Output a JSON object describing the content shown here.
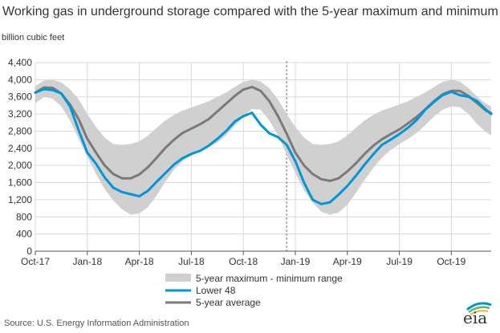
{
  "chart_data": {
    "type": "area",
    "title": "Working gas in underground storage compared with the 5-year maximum and minimum",
    "ylabel": "billion cubic feet",
    "xlabel": "",
    "ylim": [
      0,
      4400
    ],
    "yticks": [
      0,
      400,
      800,
      1200,
      1600,
      2000,
      2400,
      2800,
      3200,
      3600,
      4000,
      4400
    ],
    "ytick_labels": [
      "0",
      "400",
      "800",
      "1,200",
      "1,600",
      "2,000",
      "2,400",
      "2,800",
      "3,200",
      "3,600",
      "4,000",
      "4,400"
    ],
    "xtick_labels": [
      "Oct-17",
      "Jan-18",
      "Apr-18",
      "Jul-18",
      "Oct-18",
      "Jan-19",
      "Apr-19",
      "Jul-19",
      "Oct-19"
    ],
    "xtick_months": [
      0,
      3,
      6,
      9,
      12,
      15,
      18,
      21,
      24
    ],
    "x_unit": "months since Oct-17",
    "xlim": [
      0,
      26.3
    ],
    "grid": true,
    "divider_month": 14.5,
    "legend": [
      "5-year maximum - minimum range",
      "Lower 48",
      "5-year average"
    ],
    "series": [
      {
        "name": "5-year maximum - minimum range",
        "kind": "band",
        "color": "#d0d0d0",
        "x": [
          0,
          0.5,
          1,
          1.5,
          2,
          2.5,
          3,
          3.5,
          4,
          4.5,
          5,
          5.5,
          6,
          6.5,
          7,
          7.5,
          8,
          8.5,
          9,
          9.5,
          10,
          10.5,
          11,
          11.5,
          12,
          12.5,
          13,
          13.5,
          14,
          14.5,
          15,
          15.5,
          16,
          16.5,
          17,
          17.5,
          18,
          18.5,
          19,
          19.5,
          20,
          20.5,
          21,
          21.5,
          22,
          22.5,
          23,
          23.5,
          24,
          24.5,
          25,
          25.5,
          26,
          26.3
        ],
        "upper": [
          3850,
          3980,
          4000,
          3940,
          3780,
          3540,
          3200,
          2900,
          2650,
          2500,
          2480,
          2500,
          2560,
          2700,
          2880,
          3050,
          3180,
          3280,
          3350,
          3420,
          3500,
          3600,
          3700,
          3830,
          3950,
          4000,
          3960,
          3800,
          3540,
          3200,
          2900,
          2650,
          2500,
          2480,
          2500,
          2560,
          2700,
          2880,
          3050,
          3180,
          3280,
          3350,
          3420,
          3500,
          3600,
          3700,
          3830,
          3950,
          4000,
          3960,
          3800,
          3600,
          3440,
          3380
        ],
        "lower": [
          3450,
          3600,
          3560,
          3380,
          3050,
          2620,
          2200,
          1800,
          1450,
          1180,
          980,
          850,
          880,
          1030,
          1300,
          1620,
          1900,
          2100,
          2230,
          2330,
          2430,
          2530,
          2700,
          2920,
          3150,
          3320,
          3300,
          3050,
          2700,
          2250,
          1820,
          1420,
          1130,
          920,
          850,
          900,
          1080,
          1360,
          1660,
          1940,
          2180,
          2360,
          2500,
          2620,
          2760,
          2940,
          3140,
          3300,
          3380,
          3360,
          3200,
          2960,
          2780,
          2700
        ]
      },
      {
        "name": "Lower 48",
        "kind": "line",
        "color": "#0096d7",
        "x": [
          0,
          0.5,
          1,
          1.5,
          2,
          2.5,
          3,
          3.5,
          4,
          4.5,
          5,
          5.5,
          6,
          6.5,
          7,
          7.5,
          8,
          8.5,
          9,
          9.5,
          10,
          10.5,
          11,
          11.5,
          12,
          12.5,
          13,
          13.5,
          14,
          14.5,
          15,
          15.5,
          16,
          16.5,
          17,
          17.5,
          18,
          18.5,
          19,
          19.5,
          20,
          20.5,
          21,
          21.5,
          22,
          22.5,
          23,
          23.5,
          24,
          24.5,
          25,
          25.5,
          26,
          26.3
        ],
        "values": [
          3700,
          3780,
          3760,
          3680,
          3380,
          2820,
          2300,
          2040,
          1720,
          1480,
          1380,
          1330,
          1280,
          1410,
          1620,
          1820,
          2020,
          2170,
          2270,
          2340,
          2460,
          2620,
          2800,
          3020,
          3150,
          3230,
          2950,
          2750,
          2660,
          2480,
          2100,
          1600,
          1200,
          1100,
          1140,
          1320,
          1520,
          1760,
          2020,
          2260,
          2480,
          2600,
          2730,
          2880,
          3060,
          3300,
          3480,
          3640,
          3720,
          3640,
          3600,
          3500,
          3300,
          3200
        ]
      },
      {
        "name": "5-year average",
        "kind": "line",
        "color": "#7a7a7a",
        "x": [
          0,
          0.5,
          1,
          1.5,
          2,
          2.5,
          3,
          3.5,
          4,
          4.5,
          5,
          5.5,
          6,
          6.5,
          7,
          7.5,
          8,
          8.5,
          9,
          9.5,
          10,
          10.5,
          11,
          11.5,
          12,
          12.5,
          13,
          13.5,
          14,
          14.5,
          15,
          15.5,
          16,
          16.5,
          17,
          17.5,
          18,
          18.5,
          19,
          19.5,
          20,
          20.5,
          21,
          21.5,
          22,
          22.5,
          23,
          23.5,
          24,
          24.5,
          25,
          25.5,
          26,
          26.3
        ],
        "values": [
          3700,
          3820,
          3810,
          3680,
          3420,
          3080,
          2620,
          2300,
          2000,
          1800,
          1700,
          1700,
          1790,
          1960,
          2180,
          2410,
          2600,
          2760,
          2860,
          2960,
          3080,
          3260,
          3440,
          3620,
          3770,
          3830,
          3740,
          3500,
          3150,
          2740,
          2300,
          2000,
          1800,
          1680,
          1640,
          1700,
          1860,
          2050,
          2270,
          2460,
          2610,
          2730,
          2840,
          2980,
          3130,
          3310,
          3500,
          3660,
          3740,
          3740,
          3620,
          3450,
          3280,
          3220
        ]
      }
    ]
  },
  "source_text": "Source:  U.S. Energy Information Administration",
  "logo_text": "eia",
  "colors": {
    "lower48": "#0096d7",
    "average": "#7a7a7a",
    "band": "#d0d0d0",
    "grid": "#d9d9d9"
  }
}
